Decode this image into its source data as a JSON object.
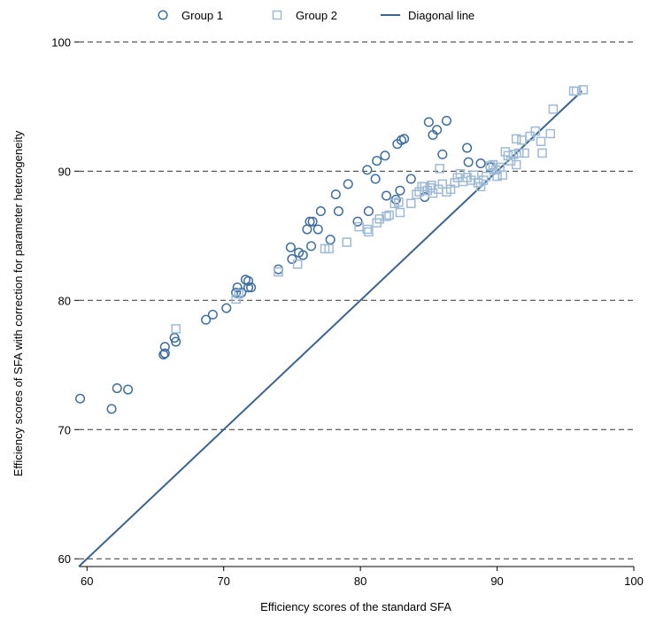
{
  "chart_data": {
    "type": "scatter",
    "title": "",
    "xlabel": "Efficiency scores of the standard SFA",
    "ylabel": "Efficiency scores of SFA with correction for parameter heterogeneity",
    "xlim": [
      59.4,
      100
    ],
    "ylim": [
      59.4,
      100.3
    ],
    "xticks": [
      60,
      70,
      80,
      90,
      100
    ],
    "yticks": [
      60,
      70,
      80,
      90,
      100
    ],
    "grid": "horizontal dashed",
    "legend_position": "top",
    "colors": {
      "group1": "#3f6f9f",
      "group2": "#9ebad6",
      "diagonal": "#3a6490"
    },
    "series": [
      {
        "name": "Group 1",
        "marker": "circle",
        "points": [
          [
            59.5,
            72.4
          ],
          [
            61.8,
            71.6
          ],
          [
            62.2,
            73.2
          ],
          [
            63.0,
            73.1
          ],
          [
            65.6,
            75.8
          ],
          [
            65.7,
            75.9
          ],
          [
            65.7,
            76.4
          ],
          [
            66.4,
            77.1
          ],
          [
            66.5,
            76.8
          ],
          [
            68.7,
            78.5
          ],
          [
            69.2,
            78.9
          ],
          [
            70.2,
            79.4
          ],
          [
            70.9,
            80.6
          ],
          [
            71.0,
            81.0
          ],
          [
            71.3,
            80.6
          ],
          [
            71.6,
            81.6
          ],
          [
            71.8,
            81.5
          ],
          [
            71.8,
            81.0
          ],
          [
            72.0,
            81.0
          ],
          [
            74.0,
            82.4
          ],
          [
            74.9,
            84.1
          ],
          [
            75.0,
            83.2
          ],
          [
            75.5,
            83.7
          ],
          [
            75.8,
            83.5
          ],
          [
            76.1,
            85.5
          ],
          [
            76.3,
            86.1
          ],
          [
            76.5,
            86.1
          ],
          [
            76.4,
            84.2
          ],
          [
            76.9,
            85.5
          ],
          [
            77.1,
            86.9
          ],
          [
            77.8,
            84.7
          ],
          [
            78.2,
            88.2
          ],
          [
            78.4,
            86.9
          ],
          [
            79.1,
            89.0
          ],
          [
            79.8,
            86.1
          ],
          [
            80.5,
            90.1
          ],
          [
            80.6,
            86.9
          ],
          [
            81.1,
            89.4
          ],
          [
            81.2,
            90.8
          ],
          [
            81.8,
            91.2
          ],
          [
            81.9,
            88.1
          ],
          [
            82.6,
            87.8
          ],
          [
            82.7,
            92.1
          ],
          [
            82.9,
            88.5
          ],
          [
            83.0,
            92.4
          ],
          [
            83.2,
            92.5
          ],
          [
            83.7,
            89.4
          ],
          [
            84.7,
            88.0
          ],
          [
            85.0,
            93.8
          ],
          [
            85.3,
            92.8
          ],
          [
            85.6,
            93.2
          ],
          [
            86.0,
            91.3
          ],
          [
            86.3,
            93.9
          ],
          [
            87.8,
            91.8
          ],
          [
            87.9,
            90.7
          ],
          [
            88.8,
            90.6
          ],
          [
            89.5,
            90.3
          ]
        ]
      },
      {
        "name": "Group 2",
        "marker": "square",
        "points": [
          [
            66.5,
            77.8
          ],
          [
            70.9,
            80.1
          ],
          [
            71.1,
            80.5
          ],
          [
            74.0,
            82.2
          ],
          [
            75.4,
            82.8
          ],
          [
            77.4,
            84.0
          ],
          [
            77.7,
            84.0
          ],
          [
            79.0,
            84.5
          ],
          [
            79.9,
            85.7
          ],
          [
            80.5,
            85.5
          ],
          [
            80.6,
            85.3
          ],
          [
            81.2,
            86.0
          ],
          [
            81.4,
            86.3
          ],
          [
            81.9,
            86.5
          ],
          [
            82.1,
            86.6
          ],
          [
            82.5,
            87.5
          ],
          [
            82.8,
            87.6
          ],
          [
            82.9,
            86.8
          ],
          [
            83.7,
            87.5
          ],
          [
            84.1,
            88.2
          ],
          [
            84.3,
            88.4
          ],
          [
            84.5,
            88.8
          ],
          [
            84.7,
            88.8
          ],
          [
            84.9,
            88.5
          ],
          [
            85.1,
            88.7
          ],
          [
            85.2,
            88.9
          ],
          [
            85.3,
            88.3
          ],
          [
            85.7,
            88.6
          ],
          [
            85.8,
            90.2
          ],
          [
            86.0,
            89.0
          ],
          [
            86.3,
            88.4
          ],
          [
            86.6,
            88.6
          ],
          [
            86.9,
            89.1
          ],
          [
            87.1,
            89.5
          ],
          [
            87.3,
            89.8
          ],
          [
            87.5,
            89.2
          ],
          [
            87.8,
            89.5
          ],
          [
            88.1,
            89.3
          ],
          [
            88.3,
            89.7
          ],
          [
            88.6,
            89.1
          ],
          [
            88.8,
            88.8
          ],
          [
            89.0,
            89.3
          ],
          [
            89.2,
            89.6
          ],
          [
            89.5,
            90.4
          ],
          [
            89.7,
            90.5
          ],
          [
            89.9,
            90.1
          ],
          [
            90.0,
            89.6
          ],
          [
            90.2,
            90.3
          ],
          [
            90.4,
            89.7
          ],
          [
            90.6,
            91.5
          ],
          [
            90.8,
            91.2
          ],
          [
            91.0,
            90.8
          ],
          [
            91.2,
            91.3
          ],
          [
            91.4,
            90.5
          ],
          [
            91.4,
            92.5
          ],
          [
            91.6,
            91.4
          ],
          [
            91.8,
            92.4
          ],
          [
            92.0,
            91.4
          ],
          [
            92.4,
            92.7
          ],
          [
            92.8,
            93.1
          ],
          [
            93.2,
            92.3
          ],
          [
            93.3,
            91.4
          ],
          [
            93.9,
            92.9
          ],
          [
            94.1,
            94.8
          ],
          [
            95.6,
            96.2
          ],
          [
            95.8,
            96.2
          ],
          [
            96.3,
            96.3
          ]
        ]
      },
      {
        "name": "Diagonal line",
        "marker": "line",
        "points": [
          [
            59.4,
            59.4
          ],
          [
            96.2,
            96.2
          ]
        ]
      }
    ]
  }
}
